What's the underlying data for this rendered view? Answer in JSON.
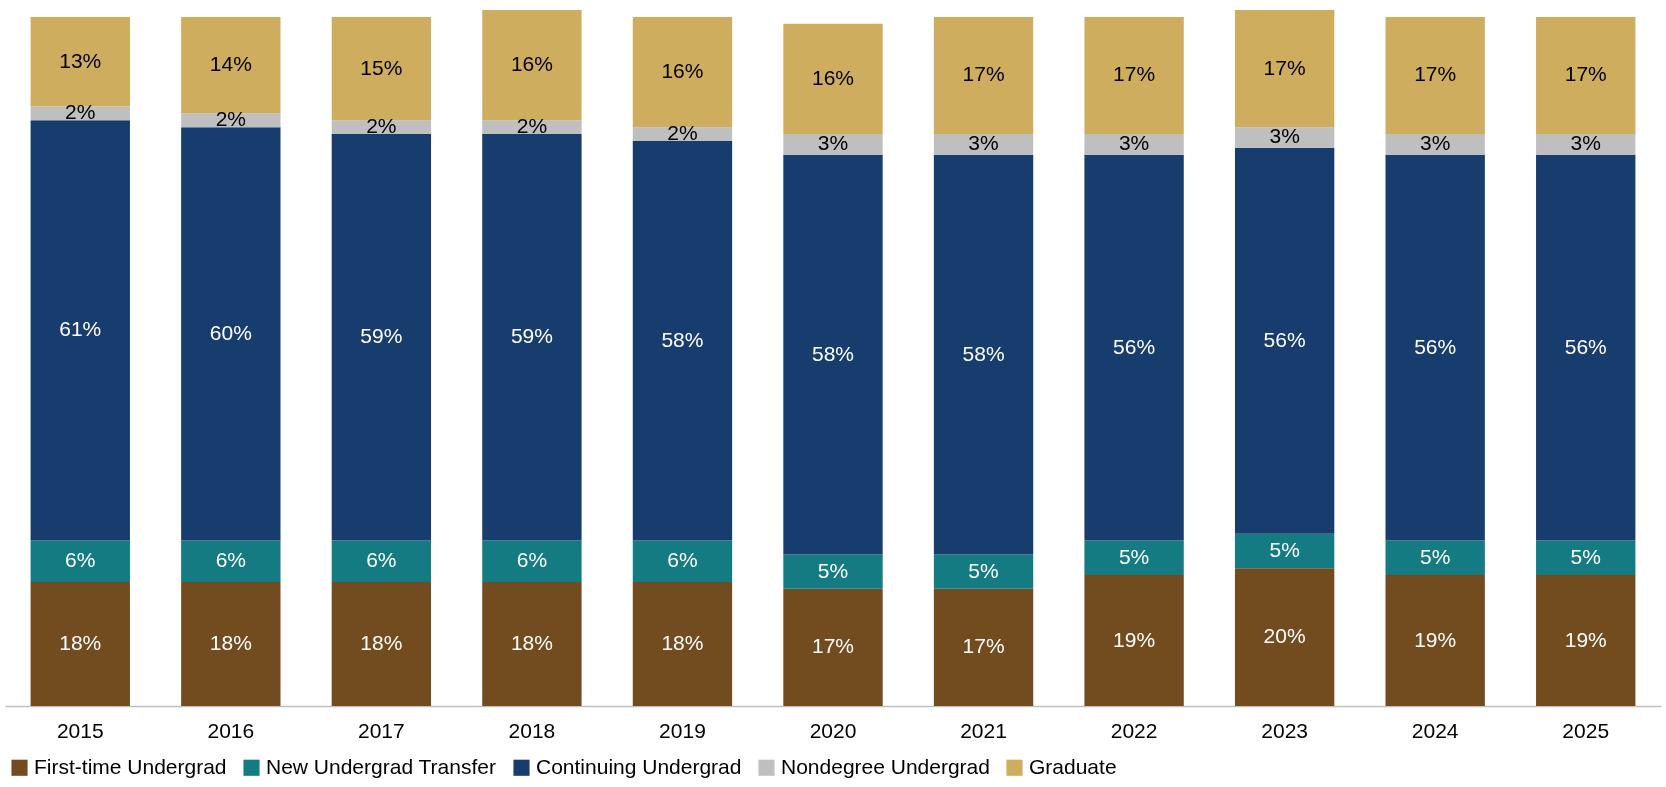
{
  "chart_data": {
    "type": "bar",
    "stacked": true,
    "legend": "bottom",
    "grid": false,
    "categories": [
      "2015",
      "2016",
      "2017",
      "2018",
      "2019",
      "2020",
      "2021",
      "2022",
      "2023",
      "2024",
      "2025"
    ],
    "series": [
      {
        "name": "First-time Undergrad",
        "color": "#724b1e",
        "values": [
          18,
          18,
          18,
          18,
          18,
          17,
          17,
          19,
          20,
          19,
          19
        ],
        "value_labels": [
          "18%",
          "18%",
          "18%",
          "18%",
          "18%",
          "17%",
          "17%",
          "19%",
          "20%",
          "19%",
          "19%"
        ]
      },
      {
        "name": "New Undergrad Transfer",
        "color": "#147b82",
        "values": [
          6,
          6,
          6,
          6,
          6,
          5,
          5,
          5,
          5,
          5,
          5
        ],
        "value_labels": [
          "6%",
          "6%",
          "6%",
          "6%",
          "6%",
          "5%",
          "5%",
          "5%",
          "5%",
          "5%",
          "5%"
        ]
      },
      {
        "name": "Continuing Undergrad",
        "color": "#173d6e",
        "values": [
          61,
          60,
          59,
          59,
          58,
          58,
          58,
          56,
          56,
          56,
          56
        ],
        "value_labels": [
          "61%",
          "60%",
          "59%",
          "59%",
          "58%",
          "58%",
          "58%",
          "56%",
          "56%",
          "56%",
          "56%"
        ]
      },
      {
        "name": "Nondegree Undergrad",
        "color": "#bfbfbf",
        "values": [
          2,
          2,
          2,
          2,
          2,
          3,
          3,
          3,
          3,
          3,
          3
        ],
        "value_labels": [
          "2%",
          "2%",
          "2%",
          "2%",
          "2%",
          "3%",
          "3%",
          "3%",
          "3%",
          "3%",
          "3%"
        ]
      },
      {
        "name": "Graduate",
        "color": "#cfad5e",
        "values": [
          13,
          14,
          15,
          16,
          16,
          16,
          17,
          17,
          17,
          17,
          17
        ],
        "value_labels": [
          "13%",
          "14%",
          "15%",
          "16%",
          "16%",
          "16%",
          "17%",
          "17%",
          "17%",
          "17%",
          "17%"
        ]
      }
    ]
  }
}
